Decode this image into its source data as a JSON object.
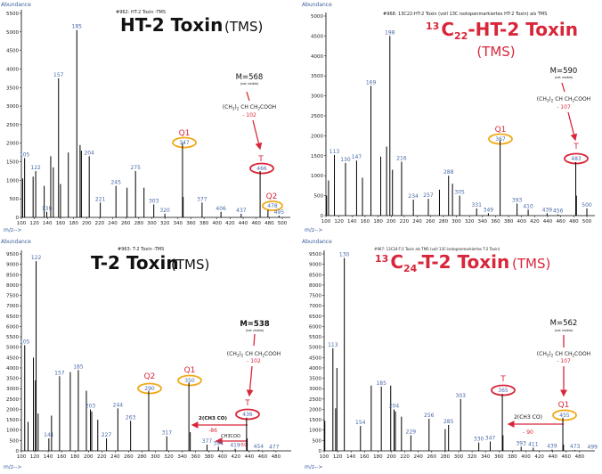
{
  "colors": {
    "peak_label": "#4a6aa8",
    "accent_red": "#d8263a",
    "accent_orange": "#f0a91a",
    "bars": "#000000",
    "axis_label": "#3a5d9c"
  },
  "chart_data": [
    {
      "type": "bar",
      "subtitle": "#962: HT-2 Toxin -TMS",
      "title": {
        "iso": "",
        "el": "",
        "count": "",
        "main": "HT-2 Toxin",
        "suffix": "(TMS)"
      },
      "ylabel": "Abundance",
      "xlabel": "m/z-->",
      "xlim": [
        100,
        500
      ],
      "ylim": [
        0,
        5500
      ],
      "xtick_step": 20,
      "xtick_last": 500,
      "ytick_step": 500,
      "peaks": [
        {
          "mz": 102,
          "abundance": 1050
        },
        {
          "mz": 105,
          "abundance": 1600,
          "label": "105"
        },
        {
          "mz": 118,
          "abundance": 1100
        },
        {
          "mz": 122,
          "abundance": 1250,
          "label": "122"
        },
        {
          "mz": 135,
          "abundance": 850
        },
        {
          "mz": 139,
          "abundance": 150,
          "label": "139"
        },
        {
          "mz": 145,
          "abundance": 1650
        },
        {
          "mz": 149,
          "abundance": 1350
        },
        {
          "mz": 157,
          "abundance": 3750,
          "label": "157"
        },
        {
          "mz": 160,
          "abundance": 900
        },
        {
          "mz": 172,
          "abundance": 1750
        },
        {
          "mz": 185,
          "abundance": 5050,
          "label": "185"
        },
        {
          "mz": 190,
          "abundance": 1950
        },
        {
          "mz": 192,
          "abundance": 1800
        },
        {
          "mz": 204,
          "abundance": 1650,
          "label": "204"
        },
        {
          "mz": 221,
          "abundance": 400,
          "label": "221"
        },
        {
          "mz": 245,
          "abundance": 850,
          "label": "245"
        },
        {
          "mz": 262,
          "abundance": 800
        },
        {
          "mz": 275,
          "abundance": 1250,
          "label": "275"
        },
        {
          "mz": 288,
          "abundance": 800
        },
        {
          "mz": 303,
          "abundance": 350,
          "label": "303"
        },
        {
          "mz": 320,
          "abundance": 100,
          "label": "320"
        },
        {
          "mz": 347,
          "abundance": 2000,
          "label": "347"
        },
        {
          "mz": 348,
          "abundance": 550
        },
        {
          "mz": 377,
          "abundance": 400,
          "label": "377"
        },
        {
          "mz": 406,
          "abundance": 150,
          "label": "406"
        },
        {
          "mz": 437,
          "abundance": 100,
          "label": "437"
        },
        {
          "mz": 466,
          "abundance": 1250,
          "label": "466"
        },
        {
          "mz": 478,
          "abundance": 200,
          "label": "478"
        },
        {
          "mz": 495,
          "abundance": 50,
          "label": "495"
        }
      ],
      "annotations": {
        "molecular_ion": "M=568",
        "note": "(not visible)",
        "loss_formula": "(CH3)2 CH CH2COOH",
        "loss_value": "- 102",
        "markers": [
          {
            "name": "Q1",
            "mz": 347,
            "color": "#f0a91a"
          },
          {
            "name": "T",
            "mz": 466,
            "color": "#d8263a"
          },
          {
            "name": "Q2",
            "mz": 478,
            "color": "#f0a91a"
          }
        ]
      }
    },
    {
      "type": "bar",
      "subtitle": "#968: 13C22-HT-2 Toxin (voll 13C isotopenmarkiertes HT-2 Toxin) als TMS",
      "title": {
        "iso": "13",
        "el": "C",
        "count": "22",
        "main": "-HT-2 Toxin",
        "suffix": "(TMS)"
      },
      "ylabel": "Abundance",
      "xlabel": "m/z-->",
      "xlim": [
        100,
        500
      ],
      "ylim": [
        0,
        5000
      ],
      "xtick_step": 20,
      "xtick_last": 500,
      "ytick_step": 500,
      "peaks": [
        {
          "mz": 101,
          "abundance": 500
        },
        {
          "mz": 104,
          "abundance": 880
        },
        {
          "mz": 113,
          "abundance": 1520,
          "label": "113"
        },
        {
          "mz": 130,
          "abundance": 1320,
          "label": "130"
        },
        {
          "mz": 147,
          "abundance": 1380,
          "label": "147"
        },
        {
          "mz": 156,
          "abundance": 950
        },
        {
          "mz": 169,
          "abundance": 3250,
          "label": "169"
        },
        {
          "mz": 184,
          "abundance": 1480
        },
        {
          "mz": 193,
          "abundance": 1730
        },
        {
          "mz": 198,
          "abundance": 4500,
          "label": "198"
        },
        {
          "mz": 202,
          "abundance": 1150
        },
        {
          "mz": 216,
          "abundance": 1350,
          "label": "216"
        },
        {
          "mz": 234,
          "abundance": 400,
          "label": "234"
        },
        {
          "mz": 257,
          "abundance": 420,
          "label": "257"
        },
        {
          "mz": 274,
          "abundance": 650
        },
        {
          "mz": 288,
          "abundance": 1000,
          "label": "288"
        },
        {
          "mz": 294,
          "abundance": 800
        },
        {
          "mz": 305,
          "abundance": 500,
          "label": "305"
        },
        {
          "mz": 331,
          "abundance": 180,
          "label": "331"
        },
        {
          "mz": 349,
          "abundance": 60,
          "label": "349"
        },
        {
          "mz": 367,
          "abundance": 1900,
          "label": "367"
        },
        {
          "mz": 393,
          "abundance": 300,
          "label": "393"
        },
        {
          "mz": 410,
          "abundance": 150,
          "label": "410"
        },
        {
          "mz": 439,
          "abundance": 60,
          "label": "439"
        },
        {
          "mz": 456,
          "abundance": 30,
          "label": "456"
        },
        {
          "mz": 483,
          "abundance": 1340,
          "label": "483"
        },
        {
          "mz": 484,
          "abundance": 500
        },
        {
          "mz": 500,
          "abundance": 180,
          "label": "500"
        }
      ],
      "annotations": {
        "molecular_ion": "M=590",
        "note": "(not visible)",
        "loss_formula": "(CH3)2 CH CH2COOH",
        "loss_value": "- 107",
        "markers": [
          {
            "name": "Q1",
            "mz": 367,
            "color": "#f0a91a"
          },
          {
            "name": "T",
            "mz": 483,
            "color": "#d8263a"
          }
        ]
      }
    },
    {
      "type": "bar",
      "subtitle": "#963: T-2 Toxin -TMS",
      "title": {
        "iso": "",
        "el": "",
        "count": "",
        "main": "T-2 Toxin",
        "suffix": "(TMS)"
      },
      "ylabel": "Abundance",
      "xlabel": "m/z-->",
      "xlim": [
        100,
        500
      ],
      "ylim": [
        0,
        9500
      ],
      "xtick_step": 20,
      "xtick_last": 480,
      "ytick_step": 500,
      "peaks": [
        {
          "mz": 105,
          "abundance": 5100,
          "label": "105"
        },
        {
          "mz": 110,
          "abundance": 1400
        },
        {
          "mz": 118,
          "abundance": 4500
        },
        {
          "mz": 121,
          "abundance": 3400
        },
        {
          "mz": 122,
          "abundance": 9150,
          "label": "122"
        },
        {
          "mz": 125,
          "abundance": 1800
        },
        {
          "mz": 141,
          "abundance": 600,
          "label": "141"
        },
        {
          "mz": 145,
          "abundance": 1700
        },
        {
          "mz": 157,
          "abundance": 3600,
          "label": "157"
        },
        {
          "mz": 173,
          "abundance": 3800
        },
        {
          "mz": 185,
          "abundance": 3900,
          "label": "185"
        },
        {
          "mz": 197,
          "abundance": 2900
        },
        {
          "mz": 203,
          "abundance": 2000,
          "label": "203"
        },
        {
          "mz": 205,
          "abundance": 1900
        },
        {
          "mz": 214,
          "abundance": 1500
        },
        {
          "mz": 227,
          "abundance": 600,
          "label": "227"
        },
        {
          "mz": 244,
          "abundance": 2050,
          "label": "244"
        },
        {
          "mz": 263,
          "abundance": 1450,
          "label": "263"
        },
        {
          "mz": 290,
          "abundance": 2900,
          "label": "290"
        },
        {
          "mz": 317,
          "abundance": 700,
          "label": "317"
        },
        {
          "mz": 350,
          "abundance": 3300,
          "label": "350"
        },
        {
          "mz": 352,
          "abundance": 900
        },
        {
          "mz": 377,
          "abundance": 300,
          "label": "377"
        },
        {
          "mz": 394,
          "abundance": 200,
          "label": "394"
        },
        {
          "mz": 419,
          "abundance": 100,
          "label": "419"
        },
        {
          "mz": 436,
          "abundance": 1600,
          "label": "436"
        },
        {
          "mz": 437,
          "abundance": 600
        },
        {
          "mz": 454,
          "abundance": 50,
          "label": "454"
        },
        {
          "mz": 477,
          "abundance": 30,
          "label": "477"
        }
      ],
      "annotations": {
        "molecular_ion": "M=538",
        "note": "(not visible)",
        "loss_formula": "(CH3)2 CH CH2COOH",
        "loss_value": "- 102",
        "loss2_formula": "2(CH3 CO)",
        "loss2_value": "-86",
        "loss3_formula": "CH3COO",
        "loss3_value": "-59",
        "markers": [
          {
            "name": "Q2",
            "mz": 290,
            "color": "#f0a91a"
          },
          {
            "name": "Q1",
            "mz": 350,
            "color": "#f0a91a"
          },
          {
            "name": "T",
            "mz": 436,
            "color": "#d8263a"
          }
        ]
      }
    },
    {
      "type": "bar",
      "subtitle": "#967: 13C24-T-2 Toxin als TMS (voll 13C-isotopenmarkiertes T-2 Toxin)",
      "title": {
        "iso": "13",
        "el": "C",
        "count": "24",
        "main": "-T-2 Toxin",
        "suffix": "(TMS)"
      },
      "ylabel": "Abundance",
      "xlabel": "m/z-->",
      "xlim": [
        100,
        500
      ],
      "ylim": [
        0,
        9500
      ],
      "xtick_step": 20,
      "xtick_last": 480,
      "ytick_step": 500,
      "peaks": [
        {
          "mz": 101,
          "abundance": 1450
        },
        {
          "mz": 113,
          "abundance": 4950,
          "label": "113"
        },
        {
          "mz": 117,
          "abundance": 2050
        },
        {
          "mz": 119,
          "abundance": 4000
        },
        {
          "mz": 130,
          "abundance": 9300,
          "label": "130"
        },
        {
          "mz": 154,
          "abundance": 1200,
          "label": "154"
        },
        {
          "mz": 170,
          "abundance": 3150
        },
        {
          "mz": 185,
          "abundance": 3100,
          "label": "185"
        },
        {
          "mz": 199,
          "abundance": 3150
        },
        {
          "mz": 204,
          "abundance": 2000,
          "label": "204"
        },
        {
          "mz": 206,
          "abundance": 1900
        },
        {
          "mz": 215,
          "abundance": 1650
        },
        {
          "mz": 229,
          "abundance": 750,
          "label": "229"
        },
        {
          "mz": 256,
          "abundance": 1550,
          "label": "256"
        },
        {
          "mz": 280,
          "abundance": 1050
        },
        {
          "mz": 285,
          "abundance": 1250,
          "label": "285"
        },
        {
          "mz": 303,
          "abundance": 2500,
          "label": "303"
        },
        {
          "mz": 330,
          "abundance": 400,
          "label": "330"
        },
        {
          "mz": 347,
          "abundance": 450,
          "label": "347"
        },
        {
          "mz": 365,
          "abundance": 2750,
          "label": "365"
        },
        {
          "mz": 366,
          "abundance": 750
        },
        {
          "mz": 393,
          "abundance": 200,
          "label": "393"
        },
        {
          "mz": 411,
          "abundance": 150,
          "label": "411"
        },
        {
          "mz": 439,
          "abundance": 60,
          "label": "439"
        },
        {
          "mz": 455,
          "abundance": 1600,
          "label": "455"
        },
        {
          "mz": 456,
          "abundance": 300
        },
        {
          "mz": 473,
          "abundance": 40,
          "label": "473"
        },
        {
          "mz": 499,
          "abundance": 20,
          "label": "499"
        }
      ],
      "annotations": {
        "molecular_ion": "M=562",
        "note": "(not visible)",
        "loss_formula": "(CH3)2 CH CH2COOH",
        "loss_value": "- 107",
        "loss2_formula": "2(CH3 CO)",
        "loss2_value": "- 90",
        "markers": [
          {
            "name": "T",
            "mz": 365,
            "color": "#d8263a"
          },
          {
            "name": "Q1",
            "mz": 455,
            "color": "#f0a91a"
          }
        ]
      }
    }
  ]
}
